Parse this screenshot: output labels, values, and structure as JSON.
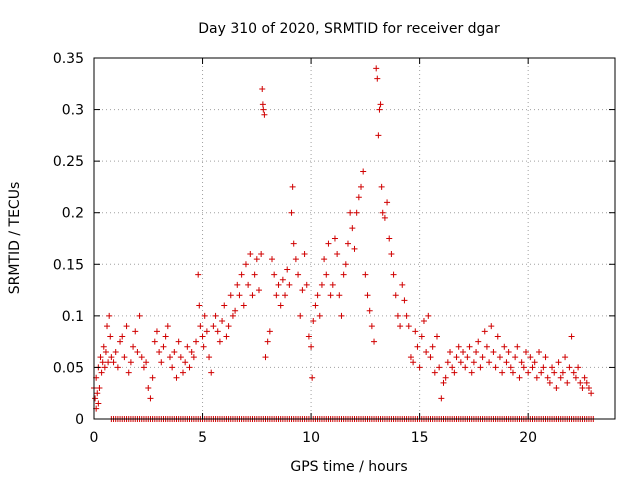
{
  "chart_data": {
    "type": "scatter",
    "title": "Day 310 of 2020, SRMTID for receiver dgar",
    "xlabel": "GPS time / hours",
    "ylabel": "SRMTID / TECUs",
    "xlim": [
      0,
      24
    ],
    "ylim": [
      0,
      0.35
    ],
    "xticks": [
      0,
      5,
      10,
      15,
      20
    ],
    "yticks": [
      0,
      0.05,
      0.1,
      0.15,
      0.2,
      0.25,
      0.3,
      0.35
    ],
    "xtick_labels": [
      "0",
      "5",
      "10",
      "15",
      "20"
    ],
    "ytick_labels": [
      "0",
      "0.05",
      "0.1",
      "0.15",
      "0.2",
      "0.25",
      "0.3",
      "0.35"
    ],
    "grid": true,
    "marker": "+",
    "color": "#d00000",
    "zero_series": {
      "x_start": 0.8,
      "x_end": 23.0,
      "step": 0.1,
      "y": 0.0
    },
    "series": [
      {
        "name": "SRMTID",
        "points": [
          [
            0.0,
            0.03
          ],
          [
            0.05,
            0.02
          ],
          [
            0.1,
            0.01
          ],
          [
            0.1,
            0.04
          ],
          [
            0.15,
            0.025
          ],
          [
            0.2,
            0.015
          ],
          [
            0.2,
            0.05
          ],
          [
            0.25,
            0.03
          ],
          [
            0.3,
            0.06
          ],
          [
            0.35,
            0.045
          ],
          [
            0.4,
            0.055
          ],
          [
            0.45,
            0.07
          ],
          [
            0.5,
            0.05
          ],
          [
            0.55,
            0.065
          ],
          [
            0.6,
            0.09
          ],
          [
            0.65,
            0.055
          ],
          [
            0.7,
            0.1
          ],
          [
            0.75,
            0.08
          ],
          [
            0.8,
            0.06
          ],
          [
            0.9,
            0.055
          ],
          [
            1.0,
            0.065
          ],
          [
            1.1,
            0.05
          ],
          [
            1.2,
            0.075
          ],
          [
            1.3,
            0.08
          ],
          [
            1.4,
            0.06
          ],
          [
            1.5,
            0.09
          ],
          [
            1.6,
            0.045
          ],
          [
            1.7,
            0.055
          ],
          [
            1.8,
            0.07
          ],
          [
            1.9,
            0.085
          ],
          [
            2.0,
            0.065
          ],
          [
            2.1,
            0.1
          ],
          [
            2.2,
            0.06
          ],
          [
            2.3,
            0.05
          ],
          [
            2.4,
            0.055
          ],
          [
            2.5,
            0.03
          ],
          [
            2.6,
            0.02
          ],
          [
            2.7,
            0.04
          ],
          [
            2.8,
            0.075
          ],
          [
            2.9,
            0.085
          ],
          [
            3.0,
            0.065
          ],
          [
            3.1,
            0.055
          ],
          [
            3.2,
            0.07
          ],
          [
            3.3,
            0.08
          ],
          [
            3.4,
            0.09
          ],
          [
            3.5,
            0.06
          ],
          [
            3.6,
            0.05
          ],
          [
            3.7,
            0.065
          ],
          [
            3.8,
            0.04
          ],
          [
            3.9,
            0.075
          ],
          [
            4.0,
            0.06
          ],
          [
            4.1,
            0.045
          ],
          [
            4.2,
            0.055
          ],
          [
            4.3,
            0.07
          ],
          [
            4.4,
            0.05
          ],
          [
            4.5,
            0.065
          ],
          [
            4.6,
            0.06
          ],
          [
            4.7,
            0.075
          ],
          [
            4.8,
            0.14
          ],
          [
            4.85,
            0.11
          ],
          [
            4.9,
            0.09
          ],
          [
            5.0,
            0.08
          ],
          [
            5.05,
            0.07
          ],
          [
            5.1,
            0.1
          ],
          [
            5.2,
            0.085
          ],
          [
            5.3,
            0.06
          ],
          [
            5.4,
            0.045
          ],
          [
            5.5,
            0.09
          ],
          [
            5.6,
            0.1
          ],
          [
            5.7,
            0.085
          ],
          [
            5.8,
            0.075
          ],
          [
            5.9,
            0.095
          ],
          [
            6.0,
            0.11
          ],
          [
            6.1,
            0.08
          ],
          [
            6.2,
            0.09
          ],
          [
            6.3,
            0.12
          ],
          [
            6.4,
            0.1
          ],
          [
            6.5,
            0.105
          ],
          [
            6.6,
            0.13
          ],
          [
            6.7,
            0.12
          ],
          [
            6.8,
            0.14
          ],
          [
            6.9,
            0.11
          ],
          [
            7.0,
            0.15
          ],
          [
            7.1,
            0.13
          ],
          [
            7.2,
            0.16
          ],
          [
            7.3,
            0.12
          ],
          [
            7.4,
            0.14
          ],
          [
            7.5,
            0.155
          ],
          [
            7.6,
            0.125
          ],
          [
            7.7,
            0.16
          ],
          [
            7.75,
            0.32
          ],
          [
            7.78,
            0.305
          ],
          [
            7.8,
            0.3
          ],
          [
            7.85,
            0.295
          ],
          [
            7.9,
            0.06
          ],
          [
            8.0,
            0.075
          ],
          [
            8.1,
            0.085
          ],
          [
            8.2,
            0.155
          ],
          [
            8.3,
            0.14
          ],
          [
            8.4,
            0.12
          ],
          [
            8.5,
            0.13
          ],
          [
            8.6,
            0.11
          ],
          [
            8.7,
            0.135
          ],
          [
            8.8,
            0.12
          ],
          [
            8.9,
            0.145
          ],
          [
            9.0,
            0.13
          ],
          [
            9.1,
            0.2
          ],
          [
            9.15,
            0.225
          ],
          [
            9.2,
            0.17
          ],
          [
            9.3,
            0.155
          ],
          [
            9.4,
            0.14
          ],
          [
            9.5,
            0.1
          ],
          [
            9.6,
            0.125
          ],
          [
            9.7,
            0.16
          ],
          [
            9.8,
            0.13
          ],
          [
            9.9,
            0.08
          ],
          [
            10.0,
            0.07
          ],
          [
            10.05,
            0.04
          ],
          [
            10.1,
            0.095
          ],
          [
            10.2,
            0.11
          ],
          [
            10.3,
            0.12
          ],
          [
            10.4,
            0.1
          ],
          [
            10.5,
            0.13
          ],
          [
            10.6,
            0.155
          ],
          [
            10.7,
            0.14
          ],
          [
            10.8,
            0.17
          ],
          [
            10.9,
            0.12
          ],
          [
            11.0,
            0.13
          ],
          [
            11.1,
            0.175
          ],
          [
            11.2,
            0.16
          ],
          [
            11.3,
            0.12
          ],
          [
            11.4,
            0.1
          ],
          [
            11.5,
            0.14
          ],
          [
            11.6,
            0.15
          ],
          [
            11.7,
            0.17
          ],
          [
            11.8,
            0.2
          ],
          [
            11.9,
            0.185
          ],
          [
            12.0,
            0.165
          ],
          [
            12.1,
            0.2
          ],
          [
            12.2,
            0.215
          ],
          [
            12.3,
            0.225
          ],
          [
            12.4,
            0.24
          ],
          [
            12.5,
            0.14
          ],
          [
            12.6,
            0.12
          ],
          [
            12.7,
            0.105
          ],
          [
            12.8,
            0.09
          ],
          [
            12.9,
            0.075
          ],
          [
            13.0,
            0.34
          ],
          [
            13.05,
            0.33
          ],
          [
            13.1,
            0.275
          ],
          [
            13.15,
            0.3
          ],
          [
            13.2,
            0.305
          ],
          [
            13.25,
            0.225
          ],
          [
            13.3,
            0.2
          ],
          [
            13.4,
            0.195
          ],
          [
            13.5,
            0.21
          ],
          [
            13.6,
            0.175
          ],
          [
            13.7,
            0.16
          ],
          [
            13.8,
            0.14
          ],
          [
            13.9,
            0.12
          ],
          [
            14.0,
            0.1
          ],
          [
            14.1,
            0.09
          ],
          [
            14.2,
            0.13
          ],
          [
            14.3,
            0.115
          ],
          [
            14.4,
            0.1
          ],
          [
            14.5,
            0.09
          ],
          [
            14.6,
            0.06
          ],
          [
            14.7,
            0.055
          ],
          [
            14.8,
            0.085
          ],
          [
            14.9,
            0.07
          ],
          [
            15.0,
            0.05
          ],
          [
            15.1,
            0.08
          ],
          [
            15.2,
            0.095
          ],
          [
            15.3,
            0.065
          ],
          [
            15.4,
            0.1
          ],
          [
            15.5,
            0.06
          ],
          [
            15.6,
            0.07
          ],
          [
            15.7,
            0.045
          ],
          [
            15.8,
            0.08
          ],
          [
            15.9,
            0.05
          ],
          [
            16.0,
            0.02
          ],
          [
            16.1,
            0.035
          ],
          [
            16.2,
            0.04
          ],
          [
            16.3,
            0.055
          ],
          [
            16.4,
            0.065
          ],
          [
            16.5,
            0.05
          ],
          [
            16.6,
            0.045
          ],
          [
            16.7,
            0.06
          ],
          [
            16.8,
            0.07
          ],
          [
            16.9,
            0.055
          ],
          [
            17.0,
            0.065
          ],
          [
            17.1,
            0.05
          ],
          [
            17.2,
            0.06
          ],
          [
            17.3,
            0.07
          ],
          [
            17.4,
            0.045
          ],
          [
            17.5,
            0.055
          ],
          [
            17.6,
            0.065
          ],
          [
            17.7,
            0.075
          ],
          [
            17.8,
            0.05
          ],
          [
            17.9,
            0.06
          ],
          [
            18.0,
            0.085
          ],
          [
            18.1,
            0.07
          ],
          [
            18.2,
            0.055
          ],
          [
            18.3,
            0.09
          ],
          [
            18.4,
            0.065
          ],
          [
            18.5,
            0.05
          ],
          [
            18.6,
            0.08
          ],
          [
            18.7,
            0.06
          ],
          [
            18.8,
            0.045
          ],
          [
            18.9,
            0.07
          ],
          [
            19.0,
            0.055
          ],
          [
            19.1,
            0.065
          ],
          [
            19.2,
            0.05
          ],
          [
            19.3,
            0.045
          ],
          [
            19.4,
            0.06
          ],
          [
            19.5,
            0.07
          ],
          [
            19.6,
            0.04
          ],
          [
            19.7,
            0.055
          ],
          [
            19.8,
            0.05
          ],
          [
            19.9,
            0.065
          ],
          [
            20.0,
            0.045
          ],
          [
            20.1,
            0.06
          ],
          [
            20.2,
            0.05
          ],
          [
            20.3,
            0.055
          ],
          [
            20.4,
            0.04
          ],
          [
            20.5,
            0.065
          ],
          [
            20.6,
            0.045
          ],
          [
            20.7,
            0.05
          ],
          [
            20.8,
            0.06
          ],
          [
            20.9,
            0.04
          ],
          [
            21.0,
            0.035
          ],
          [
            21.1,
            0.05
          ],
          [
            21.2,
            0.045
          ],
          [
            21.3,
            0.03
          ],
          [
            21.4,
            0.055
          ],
          [
            21.5,
            0.04
          ],
          [
            21.6,
            0.045
          ],
          [
            21.7,
            0.06
          ],
          [
            21.8,
            0.035
          ],
          [
            21.9,
            0.05
          ],
          [
            22.0,
            0.08
          ],
          [
            22.1,
            0.045
          ],
          [
            22.2,
            0.04
          ],
          [
            22.3,
            0.05
          ],
          [
            22.4,
            0.035
          ],
          [
            22.5,
            0.03
          ],
          [
            22.6,
            0.04
          ],
          [
            22.7,
            0.035
          ],
          [
            22.8,
            0.03
          ],
          [
            22.9,
            0.025
          ]
        ]
      }
    ]
  }
}
